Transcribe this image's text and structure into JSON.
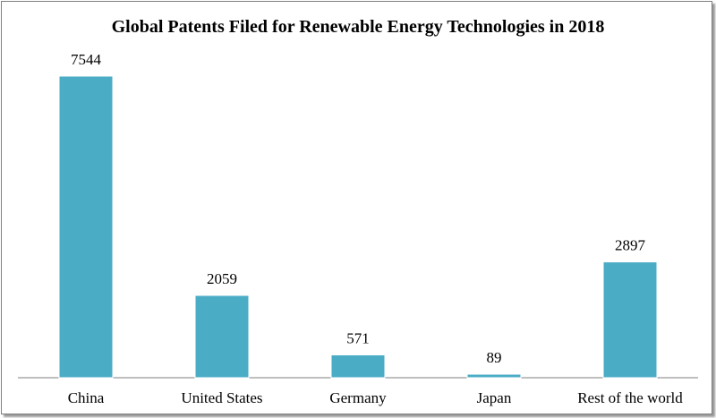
{
  "chart_data": {
    "type": "bar",
    "title": "Global Patents Filed for Renewable Energy Technologies in 2018",
    "categories": [
      "China",
      "United States",
      "Germany",
      "Japan",
      "Rest of the world"
    ],
    "values": [
      7544,
      2059,
      571,
      89,
      2897
    ],
    "data_labels": [
      "7544",
      "2059",
      "571",
      "89",
      "2897"
    ],
    "xlabel": "",
    "ylabel": "",
    "ylim": [
      0,
      7544
    ],
    "grid": false,
    "legend": "none",
    "bar_color": "#4bacc6"
  }
}
